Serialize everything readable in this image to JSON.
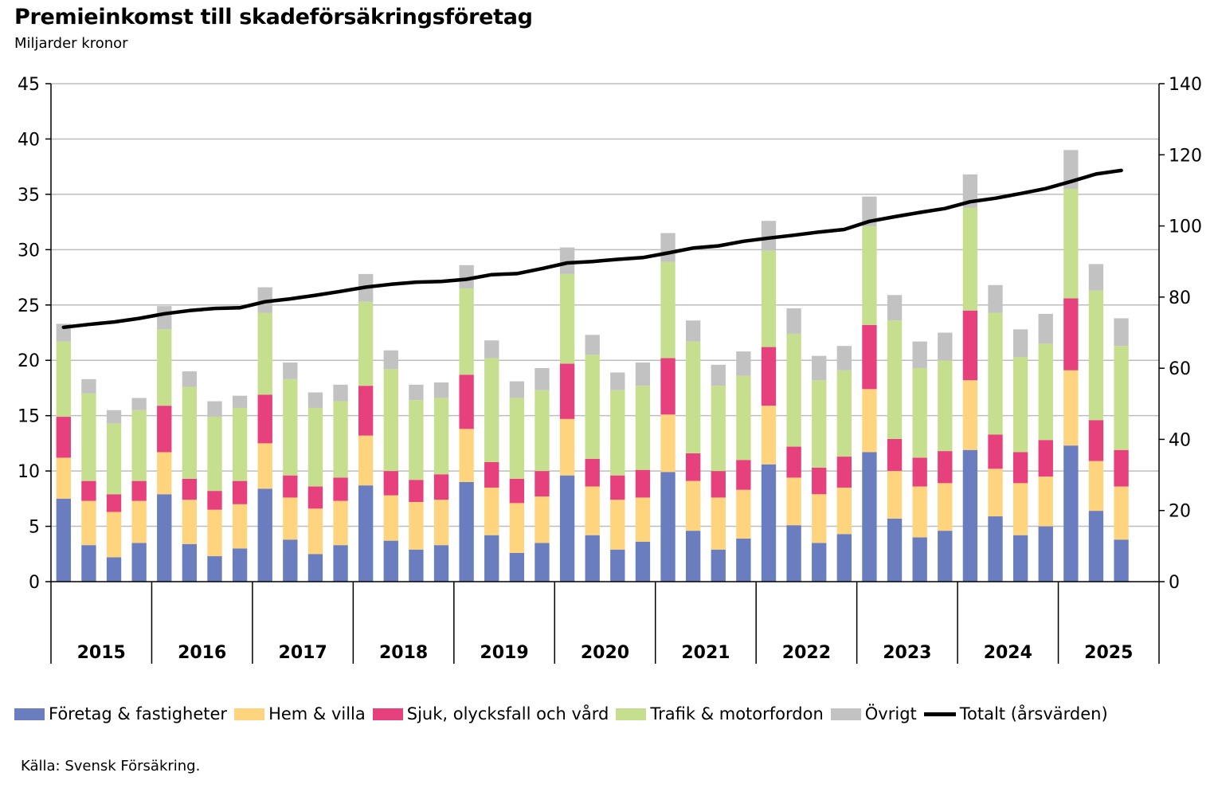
{
  "chart_data": {
    "type": "bar",
    "stacked": true,
    "title": "Premieinkomst till skadeförsäkringsföretag",
    "subtitle": "Miljarder kronor",
    "source": "Källa: Svensk Försäkring.",
    "ylim": [
      0,
      45
    ],
    "yticks": [
      "0",
      "5",
      "10",
      "15",
      "20",
      "25",
      "30",
      "35",
      "40",
      "45"
    ],
    "y2lim": [
      0,
      140
    ],
    "y2ticks": [
      "0",
      "20",
      "40",
      "60",
      "80",
      "100",
      "120",
      "140"
    ],
    "grid": true,
    "legend_position": "bottom",
    "years": [
      "2015",
      "2016",
      "2017",
      "2018",
      "2019",
      "2020",
      "2021",
      "2022",
      "2023",
      "2024",
      "2025"
    ],
    "quarters_per_year": [
      4,
      4,
      4,
      4,
      4,
      4,
      4,
      4,
      4,
      4,
      3
    ],
    "series": [
      {
        "name": "Företag & fastigheter",
        "color": "#6a7dbf",
        "axis": "left",
        "values": [
          7.5,
          3.3,
          2.2,
          3.5,
          7.9,
          3.4,
          2.3,
          3.0,
          8.4,
          3.8,
          2.5,
          3.3,
          8.7,
          3.7,
          2.9,
          3.3,
          9.0,
          4.2,
          2.6,
          3.5,
          9.6,
          4.2,
          2.9,
          3.6,
          9.9,
          4.6,
          2.9,
          3.9,
          10.6,
          5.1,
          3.5,
          4.3,
          11.7,
          5.7,
          4.0,
          4.6,
          11.9,
          5.9,
          4.2,
          5.0,
          12.3,
          6.4,
          3.8
        ]
      },
      {
        "name": "Hem & villa",
        "color": "#ffd47f",
        "axis": "left",
        "values": [
          3.7,
          4.0,
          4.1,
          3.8,
          3.8,
          4.0,
          4.2,
          4.0,
          4.1,
          3.8,
          4.1,
          4.0,
          4.5,
          4.1,
          4.3,
          4.1,
          4.8,
          4.3,
          4.5,
          4.2,
          5.1,
          4.4,
          4.5,
          4.0,
          5.2,
          4.5,
          4.7,
          4.4,
          5.3,
          4.3,
          4.4,
          4.2,
          5.7,
          4.3,
          4.6,
          4.3,
          6.3,
          4.3,
          4.7,
          4.5,
          6.8,
          4.5,
          4.8
        ]
      },
      {
        "name": "Sjuk, olycksfall och vård",
        "color": "#e6417c",
        "axis": "left",
        "values": [
          3.7,
          1.8,
          1.6,
          1.8,
          4.2,
          1.9,
          1.7,
          2.1,
          4.4,
          2.0,
          2.0,
          2.1,
          4.5,
          2.2,
          2.0,
          2.3,
          4.9,
          2.3,
          2.2,
          2.3,
          5.0,
          2.5,
          2.2,
          2.5,
          5.1,
          2.5,
          2.4,
          2.7,
          5.3,
          2.8,
          2.4,
          2.8,
          5.8,
          2.9,
          2.6,
          2.9,
          6.3,
          3.1,
          2.8,
          3.3,
          6.5,
          3.7,
          3.3
        ]
      },
      {
        "name": "Trafik & motorfordon",
        "color": "#c6df8f",
        "axis": "left",
        "values": [
          6.8,
          7.9,
          6.4,
          6.4,
          6.9,
          8.3,
          6.7,
          6.6,
          7.4,
          8.7,
          7.1,
          6.9,
          7.6,
          9.2,
          7.2,
          6.9,
          7.8,
          9.4,
          7.3,
          7.3,
          8.1,
          9.4,
          7.7,
          7.6,
          8.7,
          10.1,
          7.7,
          7.6,
          8.7,
          10.2,
          7.9,
          7.8,
          8.9,
          10.7,
          8.1,
          8.2,
          9.3,
          11.0,
          8.6,
          8.7,
          9.9,
          11.7,
          9.4
        ]
      },
      {
        "name": "Övrigt",
        "color": "#c2c2c2",
        "axis": "left",
        "values": [
          1.6,
          1.3,
          1.2,
          1.1,
          2.1,
          1.4,
          1.4,
          1.1,
          2.3,
          1.5,
          1.4,
          1.5,
          2.5,
          1.7,
          1.4,
          1.4,
          2.1,
          1.6,
          1.5,
          2.0,
          2.4,
          1.8,
          1.6,
          2.1,
          2.6,
          1.9,
          1.9,
          2.2,
          2.7,
          2.3,
          2.2,
          2.2,
          2.7,
          2.3,
          2.4,
          2.5,
          3.0,
          2.5,
          2.5,
          2.7,
          3.5,
          2.4,
          2.5
        ]
      },
      {
        "name": "Totalt (årsvärden)",
        "color": "#000000",
        "axis": "right",
        "kind": "line",
        "values": [
          71.5,
          72.3,
          73.0,
          74.0,
          75.3,
          76.2,
          76.8,
          77.0,
          78.7,
          79.5,
          80.5,
          81.6,
          82.8,
          83.6,
          84.2,
          84.4,
          85.0,
          86.3,
          86.6,
          88.0,
          89.6,
          90.0,
          90.6,
          91.1,
          92.4,
          93.8,
          94.4,
          95.7,
          96.6,
          97.4,
          98.3,
          99.0,
          101.3,
          102.6,
          103.8,
          104.9,
          106.8,
          107.8,
          109.1,
          110.5,
          112.5,
          114.6,
          115.6
        ]
      }
    ]
  }
}
